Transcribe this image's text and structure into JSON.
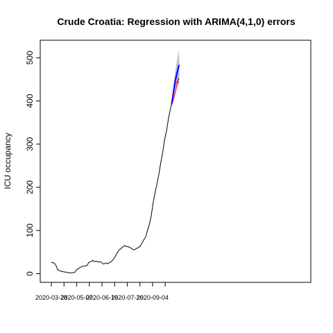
{
  "chart_data": {
    "type": "line",
    "title": "Crude Croatia: Regression with ARIMA(4,1,0) errors",
    "xlabel": "",
    "ylabel": "ICU occupancy",
    "x_start_date": "2020-03-28",
    "x_tick_labels": [
      "2020-03-28",
      "2020-05-07",
      "2020-06-16",
      "2020-07-26",
      "2020-09-04"
    ],
    "y_ticks": [
      0,
      100,
      200,
      300,
      400,
      500
    ],
    "ylim": [
      -15,
      540
    ],
    "grid": false,
    "legend": "none",
    "colors": {
      "observed": "#000000",
      "forecast": "#0000ff",
      "interval80": "#aab4ee",
      "interval95": "#c8c8c8",
      "actual": "#ff0000"
    },
    "series": [
      {
        "name": "",
        "role": "observed",
        "points": [
          [
            "2020-03-28",
            26
          ],
          [
            "2020-04-01",
            25
          ],
          [
            "2020-04-03",
            22
          ],
          [
            "2020-04-05",
            17
          ],
          [
            "2020-04-07",
            9
          ],
          [
            "2020-04-10",
            7
          ],
          [
            "2020-04-14",
            5
          ],
          [
            "2020-04-18",
            4
          ],
          [
            "2020-04-22",
            3
          ],
          [
            "2020-04-26",
            2
          ],
          [
            "2020-04-30",
            2
          ],
          [
            "2020-05-04",
            3
          ],
          [
            "2020-05-06",
            8
          ],
          [
            "2020-05-09",
            11
          ],
          [
            "2020-05-13",
            15
          ],
          [
            "2020-05-17",
            17
          ],
          [
            "2020-05-21",
            18
          ],
          [
            "2020-05-24",
            20
          ],
          [
            "2020-05-26",
            26
          ],
          [
            "2020-05-30",
            28
          ],
          [
            "2020-06-01",
            31
          ],
          [
            "2020-06-04",
            28
          ],
          [
            "2020-06-07",
            29
          ],
          [
            "2020-06-10",
            27
          ],
          [
            "2020-06-13",
            28
          ],
          [
            "2020-06-16",
            25
          ],
          [
            "2020-06-19",
            22
          ],
          [
            "2020-06-22",
            25
          ],
          [
            "2020-06-25",
            23
          ],
          [
            "2020-06-28",
            26
          ],
          [
            "2020-07-01",
            28
          ],
          [
            "2020-07-04",
            33
          ],
          [
            "2020-07-07",
            40
          ],
          [
            "2020-07-10",
            48
          ],
          [
            "2020-07-13",
            55
          ],
          [
            "2020-07-16",
            58
          ],
          [
            "2020-07-19",
            62
          ],
          [
            "2020-07-22",
            65
          ],
          [
            "2020-07-25",
            63
          ],
          [
            "2020-07-28",
            62
          ],
          [
            "2020-07-31",
            60
          ],
          [
            "2020-08-03",
            57
          ],
          [
            "2020-08-06",
            55
          ],
          [
            "2020-08-09",
            58
          ],
          [
            "2020-08-12",
            60
          ],
          [
            "2020-08-15",
            63
          ],
          [
            "2020-08-18",
            70
          ],
          [
            "2020-08-21",
            78
          ],
          [
            "2020-08-24",
            85
          ],
          [
            "2020-08-27",
            100
          ],
          [
            "2020-08-30",
            115
          ],
          [
            "2020-09-02",
            135
          ],
          [
            "2020-09-05",
            165
          ],
          [
            "2020-09-08",
            188
          ],
          [
            "2020-09-11",
            208
          ],
          [
            "2020-09-14",
            230
          ],
          [
            "2020-09-17",
            258
          ],
          [
            "2020-09-20",
            280
          ],
          [
            "2020-09-23",
            310
          ],
          [
            "2020-09-26",
            330
          ],
          [
            "2020-09-29",
            358
          ],
          [
            "2020-10-02",
            380
          ],
          [
            "2020-10-04",
            392
          ]
        ]
      },
      {
        "name": "",
        "role": "forecast",
        "points": [
          [
            "2020-10-04",
            392
          ],
          [
            "2020-10-07",
            420
          ],
          [
            "2020-10-10",
            448
          ],
          [
            "2020-10-13",
            467
          ],
          [
            "2020-10-16",
            483
          ]
        ],
        "lower80": [
          392,
          410,
          432,
          446,
          455
        ],
        "upper80": [
          392,
          430,
          462,
          484,
          505
        ],
        "lower95": [
          392,
          404,
          422,
          432,
          440
        ],
        "upper95": [
          392,
          436,
          472,
          498,
          520
        ]
      },
      {
        "name": "",
        "role": "actual",
        "points": [
          [
            "2020-10-04",
            392
          ],
          [
            "2020-10-06",
            398
          ],
          [
            "2020-10-08",
            408
          ],
          [
            "2020-10-10",
            420
          ],
          [
            "2020-10-12",
            435
          ],
          [
            "2020-10-13",
            445
          ],
          [
            "2020-10-14",
            442
          ],
          [
            "2020-10-15",
            452
          ],
          [
            "2020-10-16",
            448
          ]
        ]
      }
    ]
  }
}
